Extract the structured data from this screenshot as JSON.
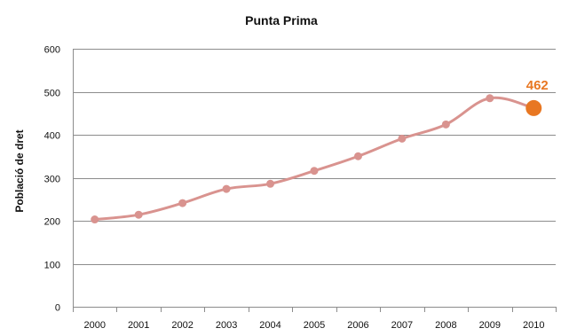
{
  "chart_data": {
    "type": "line",
    "title": "Punta Prima",
    "xlabel": "",
    "ylabel": "Població de dret",
    "categories": [
      "2000",
      "2001",
      "2002",
      "2003",
      "2004",
      "2005",
      "2006",
      "2007",
      "2008",
      "2009",
      "2010"
    ],
    "series": [
      {
        "values": [
          203,
          214,
          241,
          274,
          286,
          316,
          350,
          391,
          424,
          485,
          462
        ]
      }
    ],
    "ylim": [
      0,
      600
    ],
    "yticks": [
      "0",
      "100",
      "200",
      "300",
      "400",
      "500",
      "600"
    ],
    "grid": true,
    "highlight": {
      "category": "2010",
      "value": 462,
      "label": "462"
    },
    "colors": {
      "line": "#d9938f",
      "marker": "#d9938f",
      "highlight": "#e87722",
      "grid": "#8c8c8c",
      "axis": "#8c8c8c"
    }
  }
}
